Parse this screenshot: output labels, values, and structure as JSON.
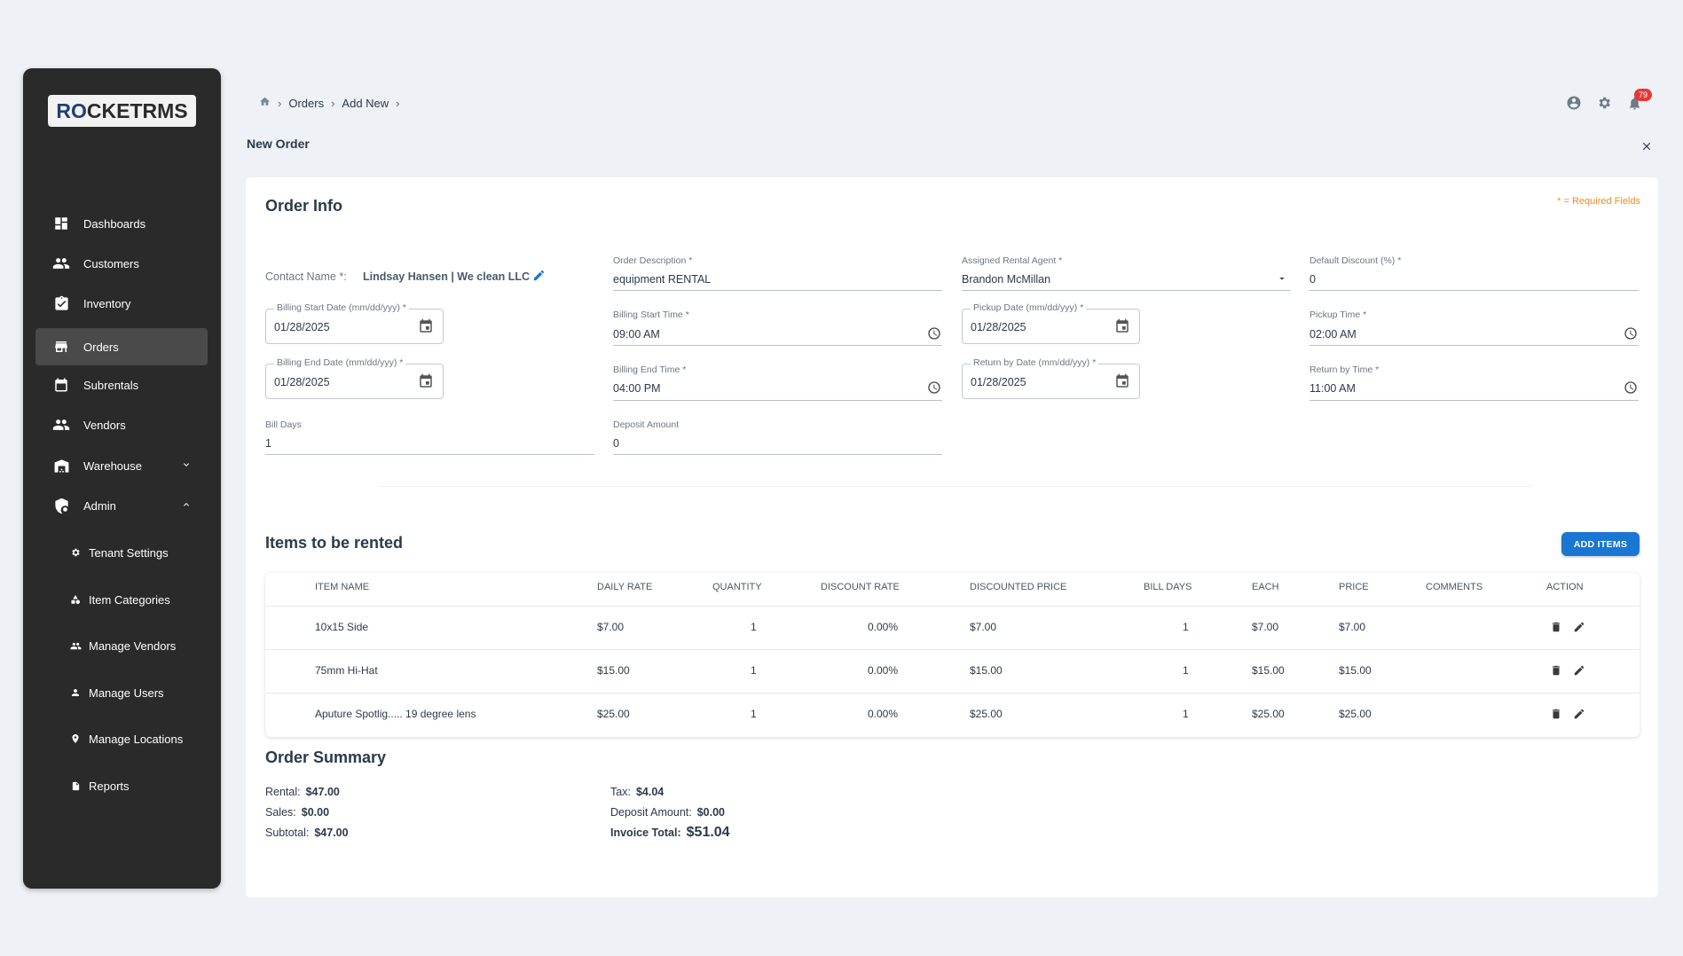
{
  "sidebar": {
    "logo": {
      "part1": "R",
      "o_letter": "O",
      "part2": "CKETRMS"
    },
    "items": [
      {
        "label": "Dashboards",
        "icon": "dashboard-icon"
      },
      {
        "label": "Customers",
        "icon": "people-icon"
      },
      {
        "label": "Inventory",
        "icon": "inventory-icon"
      },
      {
        "label": "Orders",
        "icon": "store-icon",
        "active": true
      },
      {
        "label": "Subrentals",
        "icon": "calendar-icon"
      },
      {
        "label": "Vendors",
        "icon": "people-icon"
      },
      {
        "label": "Warehouse",
        "icon": "warehouse-icon",
        "chevron": "down"
      },
      {
        "label": "Admin",
        "icon": "admin-icon",
        "chevron": "up"
      }
    ],
    "subitems": [
      {
        "label": "Tenant Settings",
        "icon": "gear-icon"
      },
      {
        "label": "Item Categories",
        "icon": "shapes-icon"
      },
      {
        "label": "Manage Vendors",
        "icon": "people-icon"
      },
      {
        "label": "Manage Users",
        "icon": "person-icon"
      },
      {
        "label": "Manage Locations",
        "icon": "location-icon"
      },
      {
        "label": "Reports",
        "icon": "file-icon"
      }
    ]
  },
  "breadcrumb": {
    "items": [
      "Orders",
      "Add New"
    ]
  },
  "header": {
    "title": "New Order",
    "notification_count": "79"
  },
  "order_info": {
    "title": "Order Info",
    "required_note": "* = Required Fields",
    "contact": {
      "label": "Contact Name *:",
      "value": "Lindsay Hansen | We clean LLC"
    },
    "order_description": {
      "label": "Order Description *",
      "value": "equipment RENTAL"
    },
    "rental_agent": {
      "label": "Assigned Rental Agent *",
      "value": "Brandon McMillan"
    },
    "default_discount": {
      "label": "Default Discount (%) *",
      "value": "0"
    },
    "billing_start_date": {
      "label": "Billing Start Date (mm/dd/yyy) *",
      "value": "01/28/2025"
    },
    "billing_start_time": {
      "label": "Billing Start Time *",
      "value": "09:00  AM"
    },
    "pickup_date": {
      "label": "Pickup Date (mm/dd/yyy) *",
      "value": "01/28/2025"
    },
    "pickup_time": {
      "label": "Pickup Time *",
      "value": "02:00  AM"
    },
    "billing_end_date": {
      "label": "Billing End Date (mm/dd/yyy) *",
      "value": "01/28/2025"
    },
    "billing_end_time": {
      "label": "Billing End Time *",
      "value": "04:00  PM"
    },
    "return_date": {
      "label": "Return by Date (mm/dd/yyy) *",
      "value": "01/28/2025"
    },
    "return_time": {
      "label": "Return by Time *",
      "value": "11:00  AM"
    },
    "bill_days": {
      "label": "Bill Days",
      "value": "1"
    },
    "deposit_amount": {
      "label": "Deposit Amount",
      "value": "0"
    }
  },
  "items": {
    "title": "Items to be rented",
    "add_button": "ADD ITEMS",
    "headers": [
      "ITEM NAME",
      "DAILY RATE",
      "QUANTITY",
      "DISCOUNT RATE",
      "DISCOUNTED PRICE",
      "BILL DAYS",
      "EACH",
      "PRICE",
      "COMMENTS",
      "ACTION"
    ],
    "rows": [
      {
        "name": "10x15 Side",
        "daily_rate": "$7.00",
        "quantity": "1",
        "discount_rate": "0.00%",
        "discounted_price": "$7.00",
        "bill_days": "1",
        "each": "$7.00",
        "price": "$7.00",
        "comments": ""
      },
      {
        "name": "75mm Hi-Hat",
        "daily_rate": "$15.00",
        "quantity": "1",
        "discount_rate": "0.00%",
        "discounted_price": "$15.00",
        "bill_days": "1",
        "each": "$15.00",
        "price": "$15.00",
        "comments": ""
      },
      {
        "name": "Aputure Spotlig..... 19 degree lens",
        "daily_rate": "$25.00",
        "quantity": "1",
        "discount_rate": "0.00%",
        "discounted_price": "$25.00",
        "bill_days": "1",
        "each": "$25.00",
        "price": "$25.00",
        "comments": ""
      }
    ]
  },
  "summary": {
    "title": "Order Summary",
    "rental": {
      "label": "Rental:",
      "value": "$47.00"
    },
    "sales": {
      "label": "Sales:",
      "value": "$0.00"
    },
    "subtotal": {
      "label": "Subtotal:",
      "value": "$47.00"
    },
    "tax": {
      "label": "Tax:",
      "value": "$4.04"
    },
    "deposit": {
      "label": "Deposit Amount:",
      "value": "$0.00"
    },
    "invoice_total": {
      "label": "Invoice Total:",
      "value": "$51.04"
    }
  },
  "colors": {
    "accent": "#1976d2",
    "sidebar_bg": "#2a2a2a",
    "required": "#ef8a20",
    "badge": "#e53935"
  }
}
